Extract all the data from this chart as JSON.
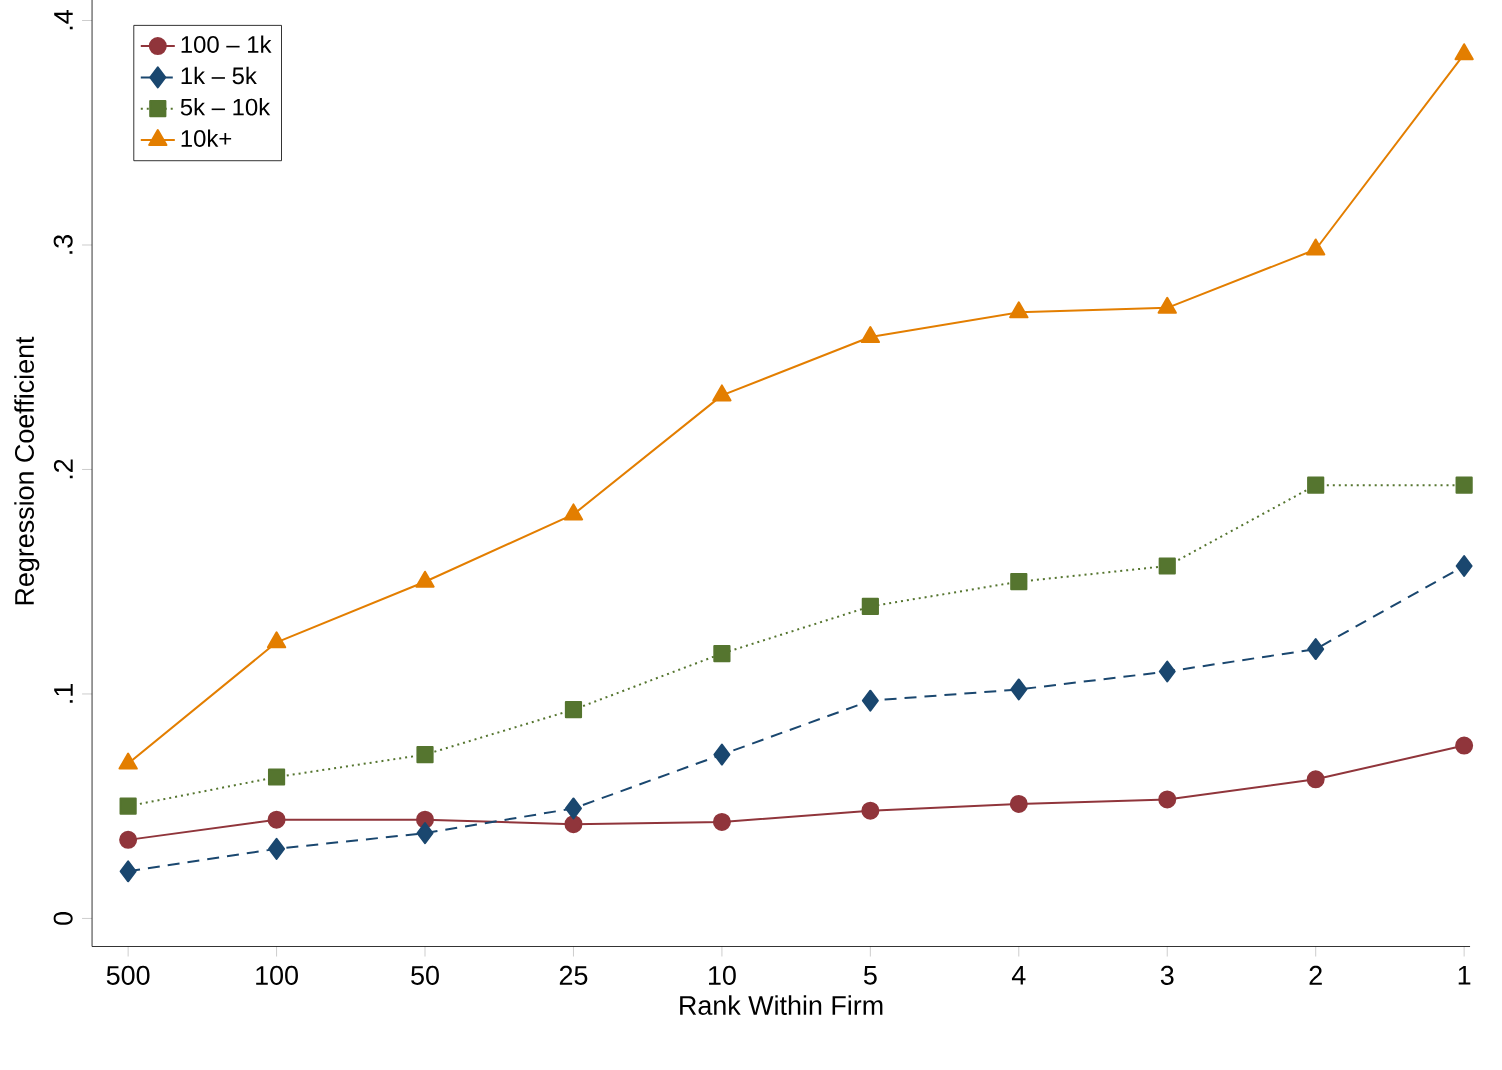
{
  "chart_data": {
    "type": "line",
    "xlabel": "Rank Within Firm",
    "ylabel": "Regression Coefficient",
    "categories": [
      "500",
      "100",
      "50",
      "25",
      "10",
      "5",
      "4",
      "3",
      "2",
      "1"
    ],
    "ylim": [
      -0.0125,
      0.4107
    ],
    "yticks": [
      0,
      {
        "value": 0.1,
        "label": ".1"
      },
      {
        "value": 0.2,
        "label": ".2"
      },
      {
        "value": 0.3,
        "label": ".3"
      },
      {
        "value": 0.4,
        "label": ".4"
      }
    ],
    "legend": "top left",
    "grid": false,
    "series": [
      {
        "name": "100 – 1k",
        "color": "#90353b",
        "marker": "circle",
        "line_style": "solid",
        "values": [
          0.035,
          0.044,
          0.044,
          0.042,
          0.043,
          0.048,
          0.051,
          0.053,
          0.062,
          0.077
        ]
      },
      {
        "name": "1k – 5k",
        "color": "#1a476f",
        "marker": "diamond",
        "line_style": "dashed",
        "values": [
          0.021,
          0.031,
          0.038,
          0.049,
          0.073,
          0.097,
          0.102,
          0.11,
          0.12,
          0.157
        ]
      },
      {
        "name": "5k – 10k",
        "color": "#55752f",
        "marker": "square",
        "line_style": "dotted",
        "values": [
          0.05,
          0.063,
          0.073,
          0.093,
          0.118,
          0.139,
          0.15,
          0.157,
          0.193,
          0.193
        ]
      },
      {
        "name": "10k+",
        "color": "#e37e00",
        "marker": "triangle",
        "line_style": "solid",
        "values": [
          0.069,
          0.123,
          0.15,
          0.18,
          0.233,
          0.259,
          0.27,
          0.272,
          0.298,
          0.385
        ]
      }
    ]
  }
}
